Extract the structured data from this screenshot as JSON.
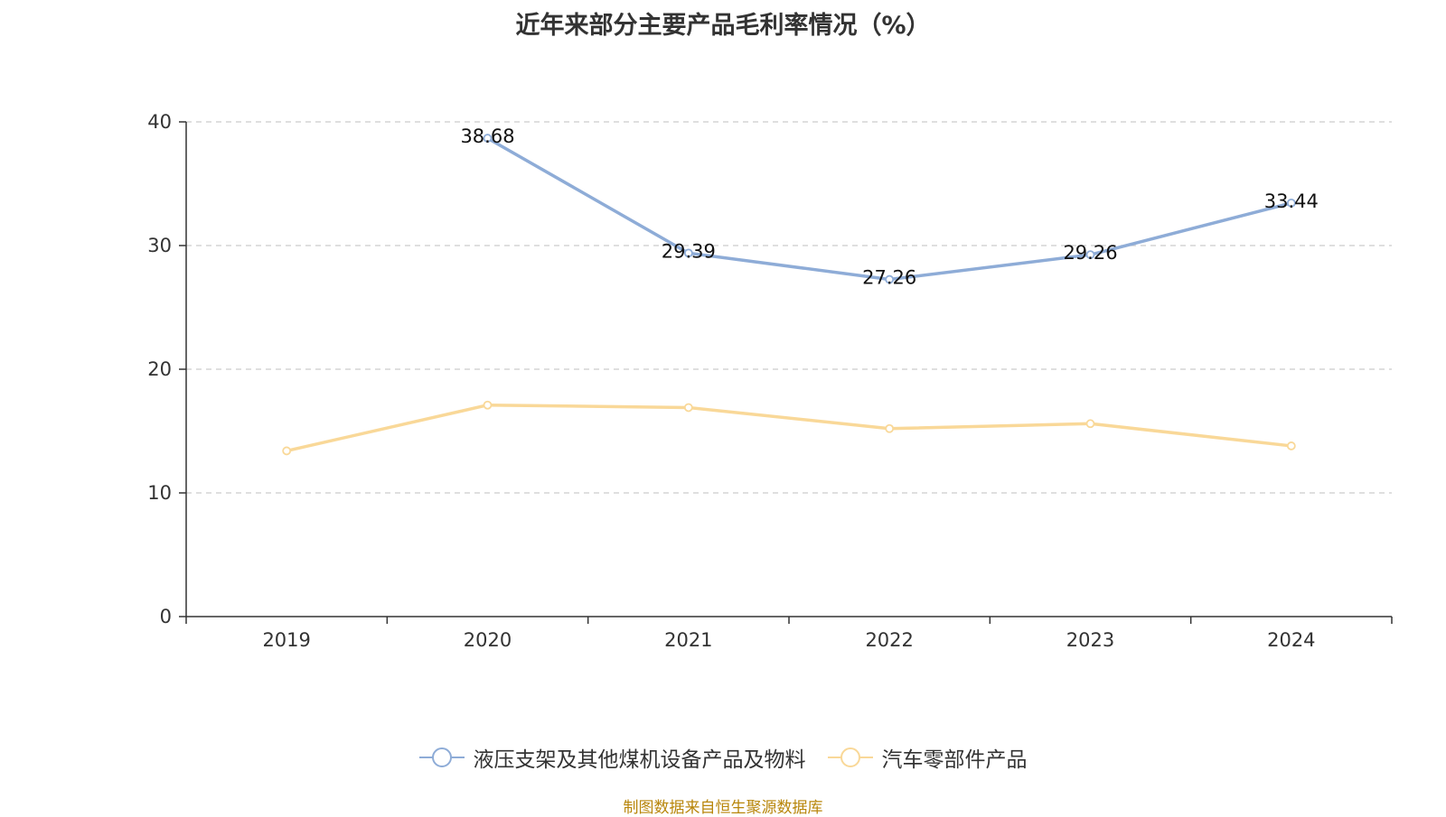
{
  "chart_data": {
    "type": "line",
    "title": "近年来部分主要产品毛利率情况（%）",
    "categories": [
      "2019",
      "2020",
      "2021",
      "2022",
      "2023",
      "2024"
    ],
    "ylim": [
      0,
      40
    ],
    "yticks": [
      0,
      10,
      20,
      30,
      40
    ],
    "xlabel": "",
    "ylabel": "",
    "grid": true,
    "legend_position": "bottom",
    "series": [
      {
        "name": "液压支架及其他煤机设备产品及物料",
        "color": "#8eacd7",
        "values": [
          null,
          38.68,
          29.39,
          27.26,
          29.26,
          33.44
        ],
        "labels": [
          "",
          "38.68",
          "29.39",
          "27.26",
          "29.26",
          "33.44"
        ]
      },
      {
        "name": "汽车零部件产品",
        "color": "#f9d898",
        "values": [
          13.4,
          17.1,
          16.9,
          15.2,
          15.6,
          13.8
        ],
        "labels": [
          "",
          "",
          "",
          "",
          "",
          ""
        ]
      }
    ]
  },
  "source": "制图数据来自恒生聚源数据库"
}
